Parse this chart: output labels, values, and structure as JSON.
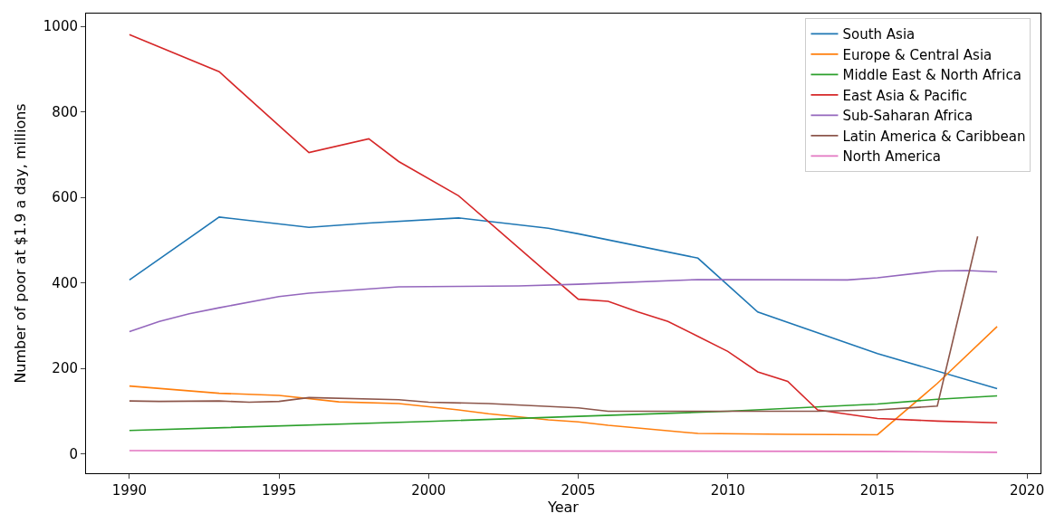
{
  "chart_data": {
    "type": "line",
    "xlabel": "Year",
    "ylabel": "Number of poor at $1.9 a day, millions",
    "xlim": [
      1988.55,
      2020.45
    ],
    "ylim": [
      -45,
      1030
    ],
    "xticks": [
      1990,
      1995,
      2000,
      2005,
      2010,
      2015,
      2020
    ],
    "yticks": [
      0,
      200,
      400,
      600,
      800,
      1000
    ],
    "legend": "top right",
    "marker": "none",
    "line_style": "solid",
    "series": [
      {
        "name": "South Asia",
        "color": "#1f77b4",
        "x": [
          1990,
          1993,
          1996,
          1998,
          2001,
          2004,
          2005,
          2009,
          2011,
          2015,
          2019
        ],
        "values": [
          407,
          554,
          530,
          540,
          552,
          528,
          515,
          458,
          332,
          235,
          153
        ]
      },
      {
        "name": "Europe & Central Asia",
        "color": "#ff7f0e",
        "x": [
          1990,
          1993,
          1995,
          1997,
          1999,
          2001,
          2002,
          2004,
          2005,
          2006,
          2009,
          2012,
          2015,
          2017,
          2019
        ],
        "values": [
          159,
          142,
          137,
          122,
          118,
          103,
          94,
          80,
          75,
          67,
          48,
          46,
          45,
          165,
          298
        ]
      },
      {
        "name": "Middle East & North Africa",
        "color": "#2ca02c",
        "x": [
          1990,
          2000,
          2005,
          2010,
          2015,
          2017,
          2019
        ],
        "values": [
          55,
          76,
          88,
          100,
          117,
          128,
          136
        ]
      },
      {
        "name": "East Asia & Pacific",
        "color": "#d62728",
        "x": [
          1990,
          1993,
          1996,
          1998,
          1999,
          2001,
          2004,
          2005,
          2006,
          2007,
          2008,
          2009,
          2010,
          2011,
          2012,
          2013,
          2015,
          2017,
          2019
        ],
        "values": [
          981,
          894,
          705,
          737,
          684,
          604,
          422,
          362,
          357,
          332,
          310,
          275,
          240,
          192,
          170,
          103,
          83,
          77,
          73
        ]
      },
      {
        "name": "Sub-Saharan Africa",
        "color": "#9467bd",
        "x": [
          1990,
          1991,
          1992,
          1993,
          1995,
          1996,
          1999,
          2001,
          2003,
          2005,
          2009,
          2014,
          2015,
          2017,
          2018,
          2019
        ],
        "values": [
          286,
          310,
          328,
          342,
          368,
          376,
          391,
          392,
          393,
          397,
          408,
          407,
          412,
          428,
          429,
          426
        ]
      },
      {
        "name": "Latin America & Caribbean",
        "color": "#8c564b",
        "x": [
          1990,
          1991,
          1993,
          1994,
          1995,
          1996,
          1999,
          2000,
          2002,
          2005,
          2006,
          2013,
          2015,
          2017,
          2018.35
        ],
        "values": [
          124,
          123,
          124,
          121,
          123,
          132,
          127,
          121,
          118,
          108,
          100,
          100,
          103,
          112,
          509
        ]
      },
      {
        "name": "North America",
        "color": "#e377c2",
        "x": [
          1990,
          2015,
          2019
        ],
        "values": [
          8,
          6,
          4
        ]
      }
    ]
  }
}
